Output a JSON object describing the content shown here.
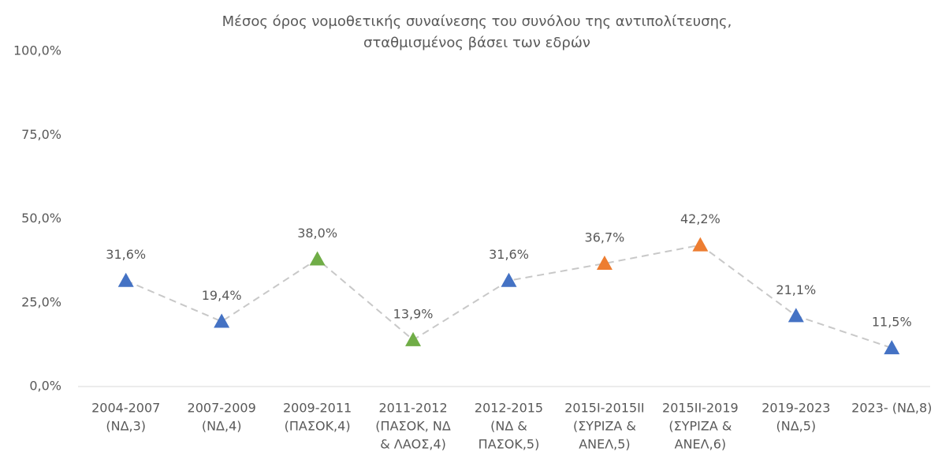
{
  "chart_data": {
    "type": "line",
    "title": [
      "Μέσος όρος νομοθετικής συναίνεσης του συνόλου της αντιπολίτευσης,",
      "σταθμισμένος βάσει των εδρών"
    ],
    "categories": [
      [
        "2004-2007",
        "(ΝΔ,3)"
      ],
      [
        "2007-2009",
        "(ΝΔ,4)"
      ],
      [
        "2009-2011",
        "(ΠΑΣΟΚ,4)"
      ],
      [
        "2011-2012",
        "(ΠΑΣΟΚ, ΝΔ",
        "& ΛΑΟΣ,4)"
      ],
      [
        "2012-2015",
        "(ΝΔ &",
        "ΠΑΣΟΚ,5)"
      ],
      [
        "2015Ι-2015ΙΙ",
        "(ΣΥΡΙΖΑ &",
        "ΑΝΕΛ,5)"
      ],
      [
        "2015ΙΙ-2019",
        "(ΣΥΡΙΖΑ &",
        "ΑΝΕΛ,6)"
      ],
      [
        "2019-2023",
        "(ΝΔ,5)"
      ],
      [
        "2023- (ΝΔ,8)"
      ]
    ],
    "values": [
      31.6,
      19.4,
      38.0,
      13.9,
      31.6,
      36.7,
      42.2,
      21.1,
      11.5
    ],
    "value_labels": [
      "31,6%",
      "19,4%",
      "38,0%",
      "13,9%",
      "31,6%",
      "36,7%",
      "42,2%",
      "21,1%",
      "11,5%"
    ],
    "point_colors": [
      "#4472c4",
      "#4472c4",
      "#70ad47",
      "#70ad47",
      "#4472c4",
      "#ed7d31",
      "#ed7d31",
      "#4472c4",
      "#4472c4"
    ],
    "line_color": "#c8c8c8",
    "ylim": [
      0,
      100
    ],
    "yticks": [
      {
        "value": 0,
        "label": "0,0%"
      },
      {
        "value": 25,
        "label": "25,0%"
      },
      {
        "value": 50,
        "label": "50,0%"
      },
      {
        "value": 75,
        "label": "75,0%"
      },
      {
        "value": 100,
        "label": "100,0%"
      }
    ]
  }
}
